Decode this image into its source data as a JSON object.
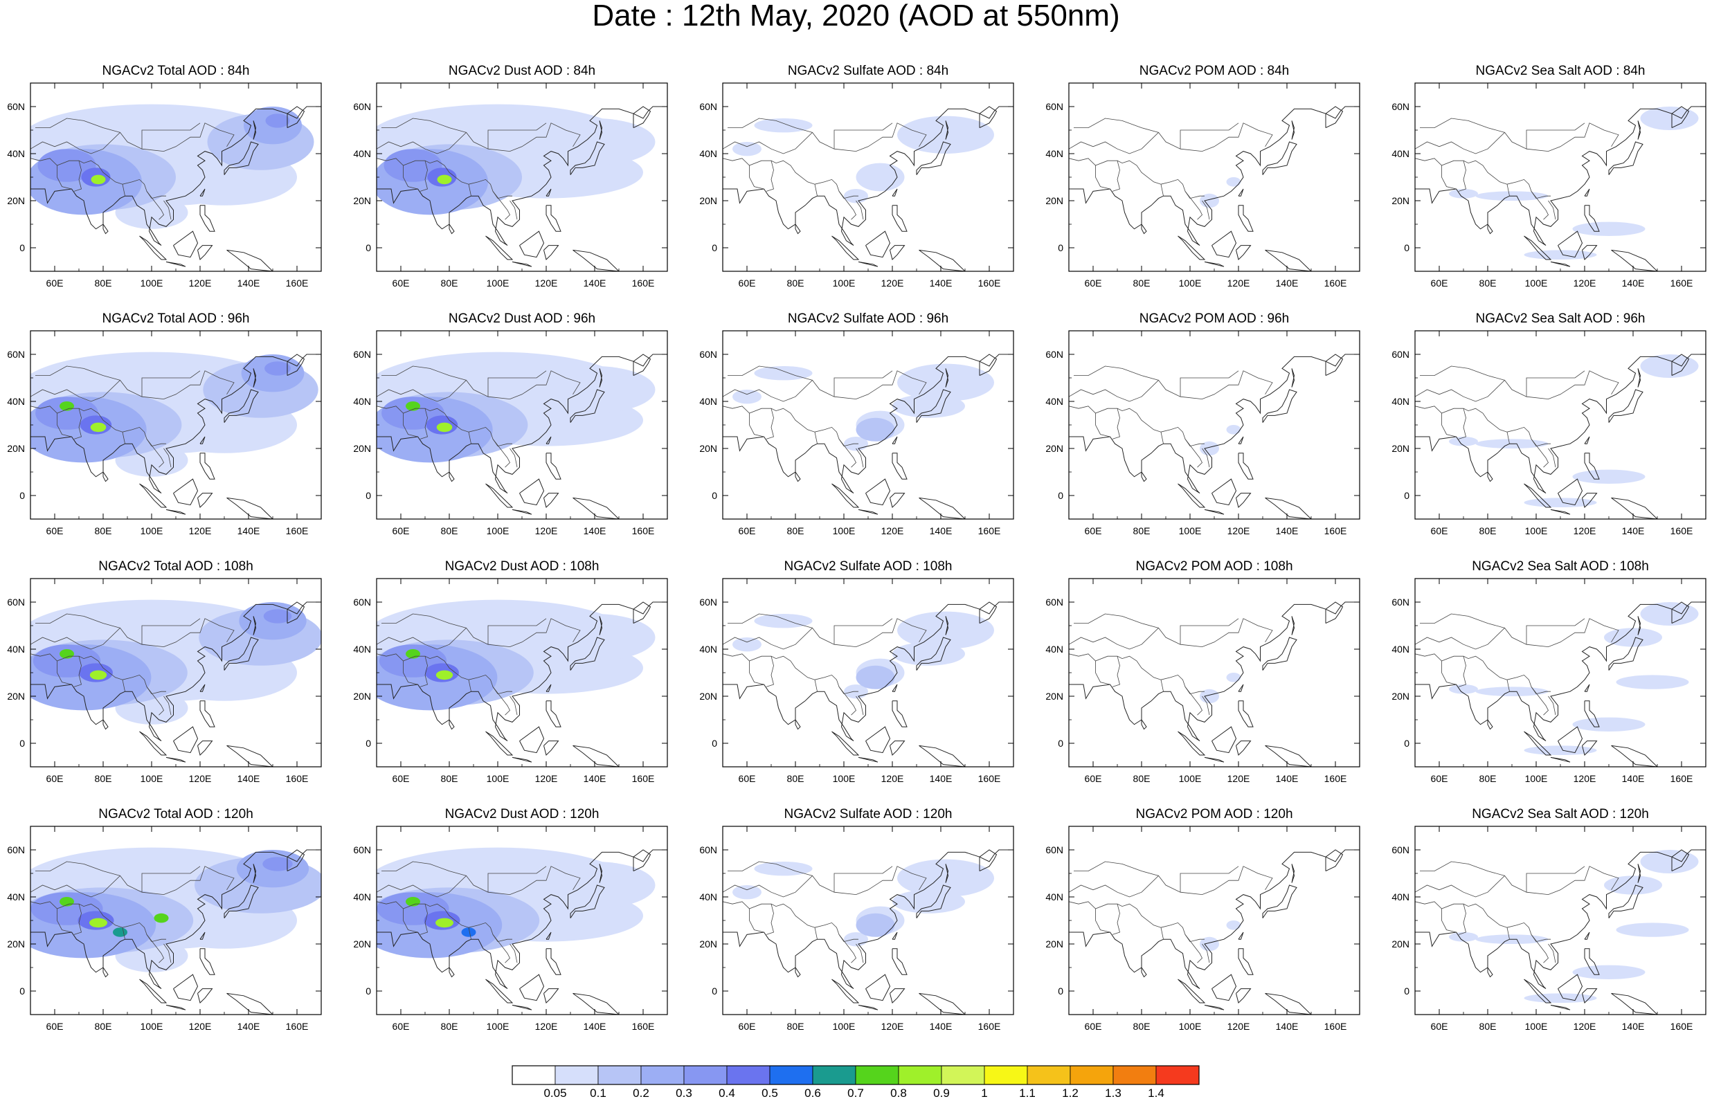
{
  "title": "Date : 12th May, 2020 (AOD at 550nm)",
  "axes": {
    "lat_labels": [
      "60N",
      "40N",
      "20N",
      "0"
    ],
    "lon_labels": [
      "60E",
      "80E",
      "100E",
      "120E",
      "140E",
      "160E"
    ]
  },
  "panels": [
    [
      "NGACv2 Total AOD : 84h",
      "NGACv2 Dust AOD : 84h",
      "NGACv2 Sulfate AOD : 84h",
      "NGACv2 POM AOD : 84h",
      "NGACv2 Sea Salt AOD : 84h"
    ],
    [
      "NGACv2 Total AOD : 96h",
      "NGACv2 Dust AOD : 96h",
      "NGACv2 Sulfate AOD : 96h",
      "NGACv2 POM AOD : 96h",
      "NGACv2 Sea Salt AOD : 96h"
    ],
    [
      "NGACv2 Total AOD : 108h",
      "NGACv2 Dust AOD : 108h",
      "NGACv2 Sulfate AOD : 108h",
      "NGACv2 POM AOD : 108h",
      "NGACv2 Sea Salt AOD : 108h"
    ],
    [
      "NGACv2 Total AOD : 120h",
      "NGACv2 Dust AOD : 120h",
      "NGACv2 Sulfate AOD : 120h",
      "NGACv2 POM AOD : 120h",
      "NGACv2 Sea Salt  AOD : 120h"
    ]
  ],
  "colorbar": {
    "colors": [
      "#ffffff",
      "#d6dffb",
      "#b7c5f6",
      "#9caef4",
      "#8797f2",
      "#6a74ef",
      "#1e6ff0",
      "#1a9b8f",
      "#55d41c",
      "#9ff02a",
      "#d2f558",
      "#f7f716",
      "#f5c21a",
      "#f5a40c",
      "#f27e10",
      "#f53a1e"
    ],
    "labels": [
      "0.05",
      "0.1",
      "0.2",
      "0.3",
      "0.4",
      "0.5",
      "0.6",
      "0.7",
      "0.8",
      "0.9",
      "1",
      "1.1",
      "1.2",
      "1.3",
      "1.4"
    ]
  }
}
